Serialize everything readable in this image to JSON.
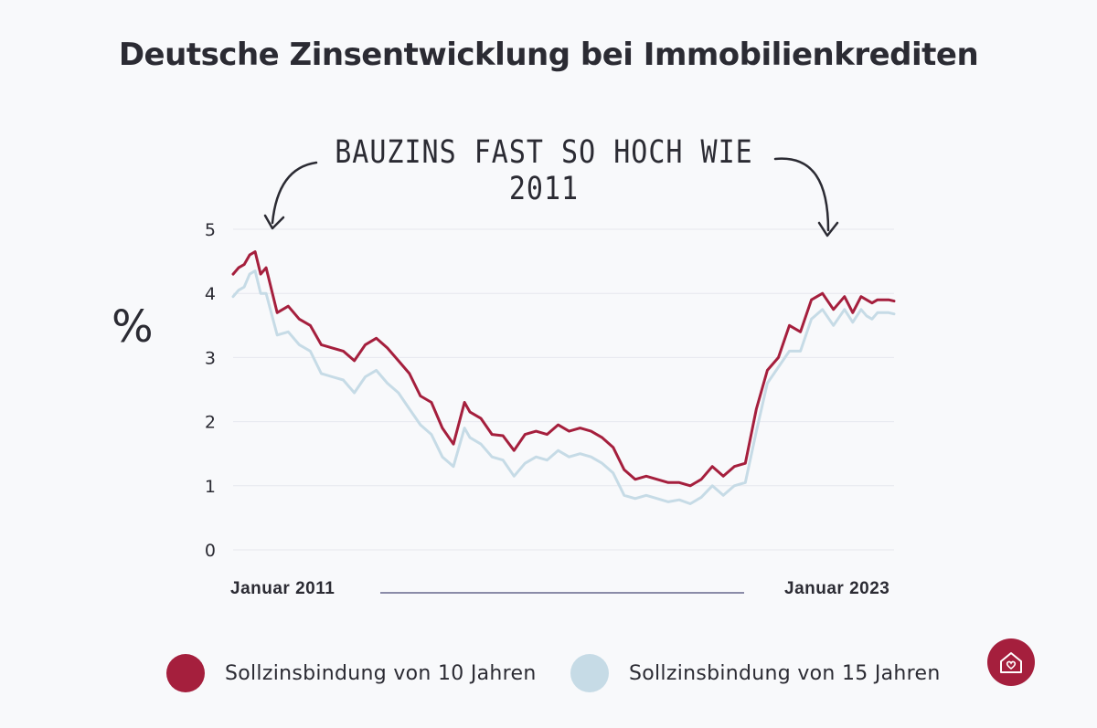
{
  "title": "Deutsche Zinsentwicklung bei Immobilienkrediten",
  "annotation": "BAUZINS FAST SO HOCH WIE 2011",
  "y_axis_symbol": "%",
  "x_start_label": "Januar 2011",
  "x_end_label": "Januar 2023",
  "legend": [
    {
      "label": "Sollzinsbindung von 10 Jahren",
      "color": "#a51f3d"
    },
    {
      "label": "Sollzinsbindung von 15 Jahren",
      "color": "#c6dbe6"
    }
  ],
  "logo": "house-heart-icon",
  "chart_data": {
    "type": "line",
    "title": "Deutsche Zinsentwicklung bei Immobilienkrediten",
    "xlabel": "",
    "ylabel": "%",
    "ylim": [
      0,
      5
    ],
    "yticks": [
      0,
      1,
      2,
      3,
      4,
      5
    ],
    "x_range": [
      "Januar 2011",
      "Januar 2023"
    ],
    "grid": true,
    "series": [
      {
        "name": "Sollzinsbindung von 10 Jahren",
        "color": "#a51f3d",
        "x": [
          2011.0,
          2011.1,
          2011.2,
          2011.3,
          2011.4,
          2011.5,
          2011.6,
          2011.8,
          2012.0,
          2012.2,
          2012.4,
          2012.6,
          2012.8,
          2013.0,
          2013.2,
          2013.4,
          2013.6,
          2013.8,
          2014.0,
          2014.2,
          2014.4,
          2014.6,
          2014.8,
          2015.0,
          2015.2,
          2015.3,
          2015.5,
          2015.7,
          2015.9,
          2016.1,
          2016.3,
          2016.5,
          2016.7,
          2016.9,
          2017.1,
          2017.3,
          2017.5,
          2017.7,
          2017.9,
          2018.1,
          2018.3,
          2018.5,
          2018.7,
          2018.9,
          2019.1,
          2019.3,
          2019.5,
          2019.7,
          2019.9,
          2020.1,
          2020.3,
          2020.5,
          2020.7,
          2020.9,
          2021.1,
          2021.3,
          2021.5,
          2021.7,
          2021.9,
          2022.1,
          2022.25,
          2022.4,
          2022.5,
          2022.6,
          2022.7,
          2022.8,
          2022.9,
          2023.0
        ],
        "values": [
          4.3,
          4.4,
          4.45,
          4.6,
          4.65,
          4.3,
          4.4,
          3.7,
          3.8,
          3.6,
          3.5,
          3.2,
          3.15,
          3.1,
          2.95,
          3.2,
          3.3,
          3.15,
          2.95,
          2.75,
          2.4,
          2.3,
          1.9,
          1.65,
          2.3,
          2.15,
          2.05,
          1.8,
          1.78,
          1.55,
          1.8,
          1.85,
          1.8,
          1.95,
          1.85,
          1.9,
          1.85,
          1.75,
          1.6,
          1.25,
          1.1,
          1.15,
          1.1,
          1.05,
          1.05,
          1.0,
          1.1,
          1.3,
          1.15,
          1.3,
          1.35,
          2.2,
          2.8,
          3.0,
          3.5,
          3.4,
          3.9,
          4.0,
          3.75,
          3.95,
          3.7,
          3.95,
          3.9,
          3.85,
          3.9,
          3.9,
          3.9,
          3.88
        ]
      },
      {
        "name": "Sollzinsbindung von 15 Jahren",
        "color": "#c6dbe6",
        "x": [
          2011.0,
          2011.1,
          2011.2,
          2011.3,
          2011.4,
          2011.5,
          2011.6,
          2011.8,
          2012.0,
          2012.2,
          2012.4,
          2012.6,
          2012.8,
          2013.0,
          2013.2,
          2013.4,
          2013.6,
          2013.8,
          2014.0,
          2014.2,
          2014.4,
          2014.6,
          2014.8,
          2015.0,
          2015.2,
          2015.3,
          2015.5,
          2015.7,
          2015.9,
          2016.1,
          2016.3,
          2016.5,
          2016.7,
          2016.9,
          2017.1,
          2017.3,
          2017.5,
          2017.7,
          2017.9,
          2018.1,
          2018.3,
          2018.5,
          2018.7,
          2018.9,
          2019.1,
          2019.3,
          2019.5,
          2019.7,
          2019.9,
          2020.1,
          2020.3,
          2020.5,
          2020.7,
          2020.9,
          2021.1,
          2021.3,
          2021.5,
          2021.7,
          2021.9,
          2022.1,
          2022.25,
          2022.4,
          2022.5,
          2022.6,
          2022.7,
          2022.8,
          2022.9,
          2023.0
        ],
        "values": [
          3.95,
          4.05,
          4.1,
          4.3,
          4.35,
          4.0,
          4.0,
          3.35,
          3.4,
          3.2,
          3.1,
          2.75,
          2.7,
          2.65,
          2.45,
          2.7,
          2.8,
          2.6,
          2.45,
          2.2,
          1.95,
          1.8,
          1.45,
          1.3,
          1.9,
          1.75,
          1.65,
          1.45,
          1.4,
          1.15,
          1.35,
          1.45,
          1.4,
          1.55,
          1.45,
          1.5,
          1.45,
          1.35,
          1.2,
          0.85,
          0.8,
          0.85,
          0.8,
          0.75,
          0.78,
          0.72,
          0.82,
          1.0,
          0.85,
          1.0,
          1.05,
          1.85,
          2.6,
          2.85,
          3.1,
          3.1,
          3.6,
          3.75,
          3.5,
          3.75,
          3.55,
          3.75,
          3.65,
          3.6,
          3.7,
          3.7,
          3.7,
          3.68
        ]
      }
    ]
  }
}
